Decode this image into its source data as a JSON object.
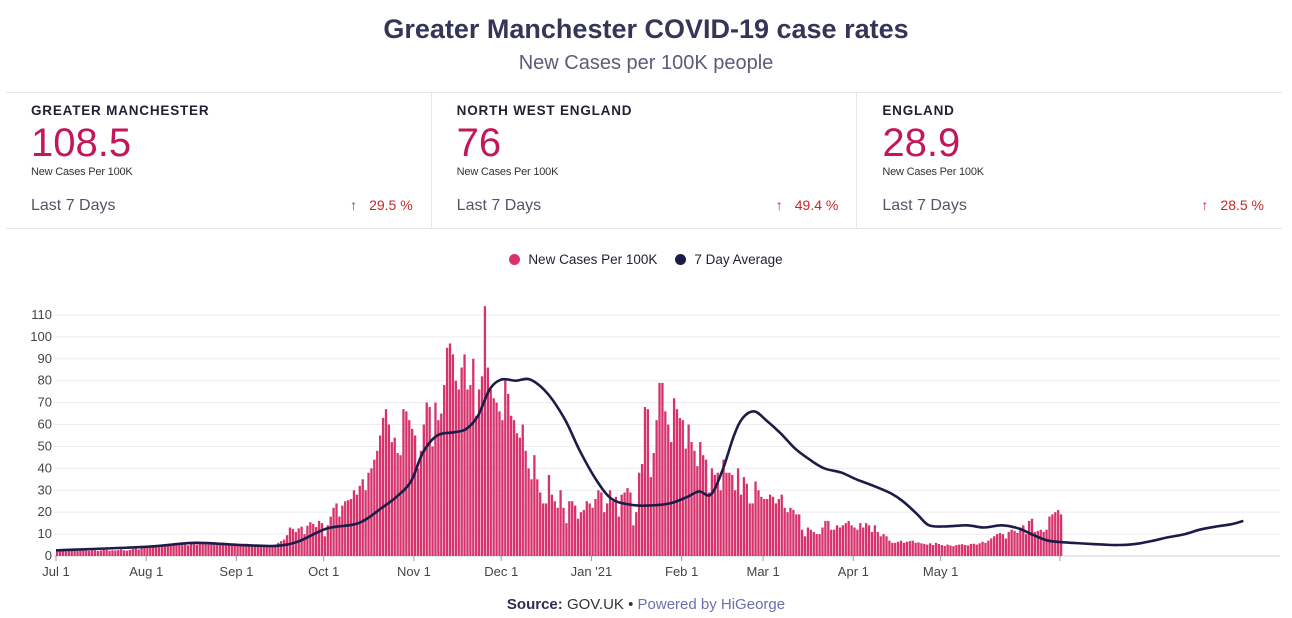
{
  "header": {
    "title": "Greater Manchester COVID-19 case rates",
    "subtitle": "New Cases per 100K people"
  },
  "stats": [
    {
      "region": "GREATER MANCHESTER",
      "value": "108.5",
      "unit": "New Cases Per 100K",
      "period": "Last 7 Days",
      "change": "29.5 %"
    },
    {
      "region": "NORTH WEST ENGLAND",
      "value": "76",
      "unit": "New Cases Per 100K",
      "period": "Last 7 Days",
      "change": "49.4 %"
    },
    {
      "region": "ENGLAND",
      "value": "28.9",
      "unit": "New Cases Per 100K",
      "period": "Last 7 Days",
      "change": "28.5 %"
    }
  ],
  "legend": [
    {
      "label": "New Cases Per 100K",
      "color": "#d6336c"
    },
    {
      "label": "7 Day Average",
      "color": "#1c1c48"
    }
  ],
  "footer": {
    "source_label": "Source:",
    "source_value": "GOV.UK",
    "separator": "•",
    "powered": "Powered by HiGeorge"
  },
  "chart_data": {
    "type": "bar",
    "start_date": "2020-07-01",
    "x_ticks": [
      {
        "label": "Jul 1",
        "date": "2020-07-01"
      },
      {
        "label": "Aug 1",
        "date": "2020-08-01"
      },
      {
        "label": "Sep 1",
        "date": "2020-09-01"
      },
      {
        "label": "Oct 1",
        "date": "2020-10-01"
      },
      {
        "label": "Nov 1",
        "date": "2020-11-01"
      },
      {
        "label": "Dec 1",
        "date": "2020-12-01"
      },
      {
        "label": "Jan '21",
        "date": "2021-01-01"
      },
      {
        "label": "Feb 1",
        "date": "2021-02-01"
      },
      {
        "label": "Mar 1",
        "date": "2021-03-01"
      },
      {
        "label": "Apr 1",
        "date": "2021-04-01"
      },
      {
        "label": "May 1",
        "date": "2021-05-01"
      }
    ],
    "y_ticks": [
      0,
      10,
      20,
      30,
      40,
      50,
      60,
      70,
      80,
      90,
      100,
      110
    ],
    "ylim": [
      0,
      115
    ],
    "grid": true,
    "legend_position": "top",
    "series": [
      {
        "name": "New Cases Per 100K",
        "color": "#d6336c",
        "values": [
          2.5,
          2.8,
          2.6,
          2.2,
          2.4,
          2.7,
          2.9,
          2.3,
          2.6,
          2.8,
          2.5,
          2.4,
          2.7,
          2.6,
          2.3,
          2.5,
          2.9,
          2.8,
          2.4,
          2.6,
          2.5,
          2.7,
          3.0,
          2.6,
          2.4,
          2.8,
          3.2,
          3.5,
          3.0,
          3.8,
          4.0,
          3.6,
          4.2,
          4.8,
          4.4,
          4.0,
          5.0,
          5.4,
          4.6,
          5.2,
          5.5,
          4.8,
          5.0,
          5.6,
          5.3,
          4.9,
          5.6,
          6.0,
          5.2,
          5.8,
          6.2,
          5.4,
          5.6,
          6.4,
          5.9,
          5.2,
          5.7,
          6.1,
          5.5,
          5.0,
          5.5,
          5.8,
          5.2,
          4.9,
          5.2,
          5.6,
          4.8,
          4.5,
          4.9,
          5.3,
          4.4,
          4.2,
          4.6,
          5.0,
          4.4,
          5.2,
          6.0,
          6.8,
          7.5,
          9.5,
          13.0,
          12.4,
          11.0,
          12.6,
          13.4,
          10.0,
          13.8,
          15.4,
          14.6,
          13.2,
          16.0,
          15.0,
          9.0,
          14.0,
          18.0,
          22.0,
          24.0,
          18.0,
          23.0,
          25.0,
          25.5,
          26.0,
          30.0,
          28.0,
          32.0,
          35.0,
          30.0,
          38.0,
          40.0,
          44.0,
          48.0,
          55.0,
          63.0,
          67.0,
          60.0,
          52.0,
          54.0,
          47.0,
          46.0,
          67.0,
          66.0,
          62.0,
          58.0,
          55.0,
          40.0,
          48.0,
          60.0,
          70.0,
          68.0,
          50.0,
          70.0,
          62.0,
          65.0,
          78.0,
          95.0,
          97.0,
          92.0,
          80.0,
          76.0,
          86.0,
          92.0,
          76.0,
          78.0,
          90.0,
          64.0,
          76.0,
          82.0,
          114.0,
          86.0,
          76.0,
          72.0,
          70.0,
          66.0,
          62.0,
          80.0,
          74.0,
          64.0,
          62.0,
          56.0,
          54.0,
          60.0,
          48.0,
          40.0,
          35.0,
          46.0,
          35.0,
          29.0,
          24.0,
          24.0,
          37.0,
          28.0,
          25.0,
          22.0,
          30.0,
          22.0,
          15.0,
          25.0,
          25.0,
          23.0,
          17.0,
          20.0,
          21.0,
          25.0,
          24.0,
          22.0,
          26.0,
          30.0,
          29.0,
          20.0,
          24.0,
          30.0,
          25.0,
          27.0,
          18.0,
          28.0,
          29.0,
          31.0,
          29.0,
          14.0,
          20.0,
          38.0,
          42.0,
          68.0,
          67.0,
          36.0,
          47.0,
          62.0,
          79.0,
          79.0,
          66.0,
          60.0,
          52.0,
          72.0,
          67.0,
          63.0,
          62.0,
          49.0,
          60.0,
          52.0,
          48.0,
          41.0,
          52.0,
          46.0,
          44.0,
          29.0,
          40.0,
          37.0,
          38.0,
          30.0,
          44.0,
          38.0,
          38.0,
          37.0,
          30.0,
          40.0,
          28.0,
          36.0,
          33.0,
          24.0,
          24.0,
          34.0,
          30.0,
          27.0,
          26.0,
          26.0,
          28.0,
          27.0,
          24.0,
          26.0,
          28.0,
          22.0,
          20.0,
          22.0,
          21.0,
          19.0,
          19.0,
          12.0,
          9.0,
          13.0,
          12.0,
          11.0,
          10.0,
          10.0,
          13.0,
          16.0,
          16.0,
          12.0,
          12.0,
          14.0,
          13.0,
          14.0,
          15.0,
          16.0,
          14.0,
          13.0,
          12.0,
          15.0,
          13.0,
          15.0,
          14.0,
          11.0,
          14.0,
          11.0,
          9.0,
          10.0,
          9.0,
          7.0,
          6.0,
          6.0,
          6.5,
          7.0,
          6.0,
          6.5,
          6.8,
          7.0,
          6.0,
          6.2,
          5.8,
          5.5,
          5.2,
          5.8,
          5.0,
          6.0,
          5.5,
          5.0,
          4.6,
          5.2,
          4.8,
          4.5,
          5.0,
          5.2,
          5.4,
          5.0,
          4.8,
          5.5,
          5.6,
          5.2,
          5.8,
          6.5,
          6.0,
          7.0,
          8.0,
          9.0,
          10.0,
          10.5,
          10.0,
          8.0,
          11.0,
          12.0,
          11.5,
          10.5,
          13.0,
          14.0,
          10.0,
          16.0,
          17.0,
          11.0,
          11.5,
          12.0,
          11.0,
          12.0,
          18.0,
          19.0,
          20.0,
          21.0,
          19.0
        ]
      },
      {
        "name": "7 Day Average",
        "color": "#1c1c48",
        "points": [
          [
            0,
            2.6
          ],
          [
            31,
            4.2
          ],
          [
            47,
            6.0
          ],
          [
            62,
            5.1
          ],
          [
            75,
            4.6
          ],
          [
            83,
            6.5
          ],
          [
            93,
            12.5
          ],
          [
            104,
            15.0
          ],
          [
            112,
            22.0
          ],
          [
            117,
            27.0
          ],
          [
            122,
            34.0
          ],
          [
            126,
            47.0
          ],
          [
            131,
            55.0
          ],
          [
            137,
            56.5
          ],
          [
            141,
            58.0
          ],
          [
            145,
            64.0
          ],
          [
            149,
            76.0
          ],
          [
            153,
            80.5
          ],
          [
            158,
            80.0
          ],
          [
            163,
            80.5
          ],
          [
            169,
            74.0
          ],
          [
            175,
            62.0
          ],
          [
            180,
            48.0
          ],
          [
            186,
            34.0
          ],
          [
            191,
            26.0
          ],
          [
            197,
            23.5
          ],
          [
            203,
            23.0
          ],
          [
            211,
            24.0
          ],
          [
            217,
            27.0
          ],
          [
            221,
            29.5
          ],
          [
            225,
            28.0
          ],
          [
            229,
            39.0
          ],
          [
            233,
            55.0
          ],
          [
            236,
            63.0
          ],
          [
            240,
            66.0
          ],
          [
            244,
            62.0
          ],
          [
            249,
            56.0
          ],
          [
            254,
            49.0
          ],
          [
            259,
            44.0
          ],
          [
            264,
            40.0
          ],
          [
            270,
            38.0
          ],
          [
            275,
            35.0
          ],
          [
            281,
            32.0
          ],
          [
            287,
            28.5
          ],
          [
            291,
            25.0
          ],
          [
            296,
            19.0
          ],
          [
            300,
            14.0
          ],
          [
            306,
            13.5
          ],
          [
            313,
            14.0
          ],
          [
            319,
            13.0
          ],
          [
            325,
            14.0
          ],
          [
            331,
            12.5
          ],
          [
            336,
            9.5
          ],
          [
            341,
            7.0
          ],
          [
            347,
            6.2
          ],
          [
            353,
            5.7
          ],
          [
            360,
            5.2
          ],
          [
            365,
            5.0
          ],
          [
            371,
            5.5
          ],
          [
            377,
            7.0
          ],
          [
            382,
            8.5
          ],
          [
            388,
            10.0
          ],
          [
            393,
            12.0
          ],
          [
            399,
            13.5
          ],
          [
            404,
            14.5
          ],
          [
            408,
            16.0
          ]
        ]
      }
    ]
  }
}
